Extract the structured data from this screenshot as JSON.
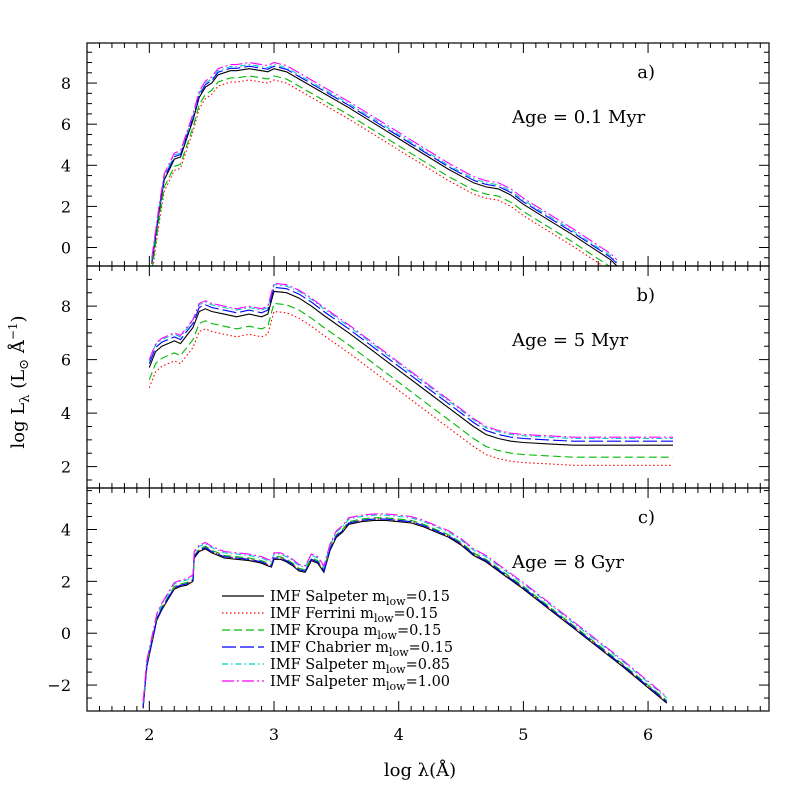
{
  "figure": {
    "xlabel": "log λ(Å)",
    "ylabel": "log Lλ (L⊙ Å⁻¹)",
    "xlim": [
      1.5,
      6.97
    ],
    "x_ticks": [
      2,
      3,
      4,
      5,
      6
    ]
  },
  "legend": [
    {
      "text": "IMF Salpeter m",
      "sub": "low",
      "suffix": "=0.15",
      "color": "#000000",
      "dash": "none"
    },
    {
      "text": "IMF Ferrini m",
      "sub": "low",
      "suffix": "=0.15",
      "color": "#ff0000",
      "dash": "1.5,2.5"
    },
    {
      "text": "IMF Kroupa m",
      "sub": "low",
      "suffix": "=0.15",
      "color": "#00bb00",
      "dash": "8,4"
    },
    {
      "text": "IMF Chabrier m",
      "sub": "low",
      "suffix": "=0.15",
      "color": "#0000ff",
      "dash": "14,4"
    },
    {
      "text": "IMF Salpeter m",
      "sub": "low",
      "suffix": "=0.85",
      "color": "#00cccc",
      "dash": "6,3,1.5,3"
    },
    {
      "text": "IMF Salpeter m",
      "sub": "low",
      "suffix": "=1.00",
      "color": "#ff00ff",
      "dash": "12,3,2,3"
    }
  ],
  "chart_data": [
    {
      "type": "line",
      "panel_label": "a)",
      "annotation": "Age = 0.1 Myr",
      "ylim": [
        -0.9,
        9.95
      ],
      "y_ticks": [
        0,
        2,
        4,
        6,
        8
      ],
      "series_offsets": [
        0.0,
        -0.55,
        -0.35,
        0.12,
        0.2,
        0.3
      ],
      "x": [
        2.02,
        2.08,
        2.12,
        2.17,
        2.2,
        2.25,
        2.3,
        2.35,
        2.4,
        2.45,
        2.5,
        2.55,
        2.6,
        2.65,
        2.7,
        2.75,
        2.8,
        2.85,
        2.9,
        2.95,
        3.0,
        3.1,
        3.2,
        3.4,
        3.6,
        3.8,
        4.0,
        4.2,
        4.4,
        4.6,
        4.7,
        4.8,
        4.9,
        5.0,
        5.2,
        5.4,
        5.5,
        5.6,
        5.7,
        5.75
      ],
      "y": [
        -0.8,
        1.8,
        3.3,
        3.9,
        4.3,
        4.4,
        5.3,
        6.2,
        7.3,
        7.8,
        8.0,
        8.4,
        8.5,
        8.6,
        8.6,
        8.65,
        8.7,
        8.65,
        8.6,
        8.55,
        8.7,
        8.55,
        8.2,
        7.5,
        6.8,
        6.05,
        5.3,
        4.55,
        3.8,
        3.15,
        2.95,
        2.85,
        2.55,
        2.1,
        1.35,
        0.6,
        0.2,
        -0.2,
        -0.6,
        -0.9
      ]
    },
    {
      "type": "line",
      "panel_label": "b)",
      "annotation": "Age = 5 Myr",
      "ylim": [
        1.2,
        9.5
      ],
      "y_ticks": [
        2,
        4,
        6,
        8
      ],
      "series_offsets": [
        0.0,
        -0.75,
        -0.45,
        0.15,
        0.25,
        0.3
      ],
      "x": [
        2.0,
        2.05,
        2.1,
        2.15,
        2.2,
        2.25,
        2.3,
        2.35,
        2.4,
        2.45,
        2.5,
        2.6,
        2.7,
        2.8,
        2.9,
        2.95,
        3.0,
        3.1,
        3.2,
        3.3,
        3.4,
        3.6,
        3.8,
        4.0,
        4.2,
        4.4,
        4.6,
        4.7,
        4.8,
        4.9,
        5.0,
        5.2,
        5.4,
        5.6,
        5.8,
        6.0,
        6.2
      ],
      "y": [
        5.7,
        6.3,
        6.5,
        6.6,
        6.7,
        6.6,
        6.9,
        7.2,
        7.8,
        7.9,
        7.8,
        7.7,
        7.6,
        7.7,
        7.6,
        7.7,
        8.55,
        8.5,
        8.3,
        8.0,
        7.65,
        7.0,
        6.3,
        5.6,
        4.9,
        4.2,
        3.5,
        3.2,
        3.05,
        2.95,
        2.9,
        2.85,
        2.8,
        2.8,
        2.8,
        2.8,
        2.8
      ]
    },
    {
      "type": "line",
      "panel_label": "c)",
      "annotation": "Age = 8 Gyr",
      "ylim": [
        -3.0,
        5.6
      ],
      "y_ticks": [
        -2,
        0,
        2,
        4
      ],
      "series_offsets": [
        0.0,
        0.05,
        0.1,
        0.05,
        0.2,
        0.25
      ],
      "x": [
        1.95,
        1.98,
        2.02,
        2.06,
        2.1,
        2.15,
        2.2,
        2.25,
        2.3,
        2.35,
        2.36,
        2.4,
        2.45,
        2.5,
        2.55,
        2.6,
        2.7,
        2.8,
        2.9,
        2.95,
        2.98,
        3.0,
        3.05,
        3.1,
        3.15,
        3.2,
        3.25,
        3.3,
        3.35,
        3.4,
        3.45,
        3.5,
        3.55,
        3.6,
        3.7,
        3.8,
        3.9,
        4.0,
        4.1,
        4.2,
        4.3,
        4.4,
        4.5,
        4.6,
        4.7,
        4.8,
        4.9,
        5.0,
        5.2,
        5.4,
        5.6,
        5.8,
        6.0,
        6.1,
        6.15
      ],
      "y": [
        -2.9,
        -1.3,
        -0.4,
        0.5,
        0.9,
        1.3,
        1.7,
        1.8,
        1.85,
        2.0,
        2.9,
        3.15,
        3.25,
        3.1,
        3.0,
        2.9,
        2.85,
        2.8,
        2.7,
        2.6,
        2.55,
        2.85,
        2.85,
        2.75,
        2.6,
        2.4,
        2.35,
        2.8,
        2.7,
        2.35,
        3.2,
        3.7,
        3.9,
        4.2,
        4.3,
        4.35,
        4.35,
        4.3,
        4.25,
        4.1,
        3.9,
        3.7,
        3.4,
        3.0,
        2.75,
        2.4,
        2.05,
        1.7,
        0.95,
        0.2,
        -0.55,
        -1.3,
        -2.1,
        -2.5,
        -2.7
      ]
    }
  ]
}
